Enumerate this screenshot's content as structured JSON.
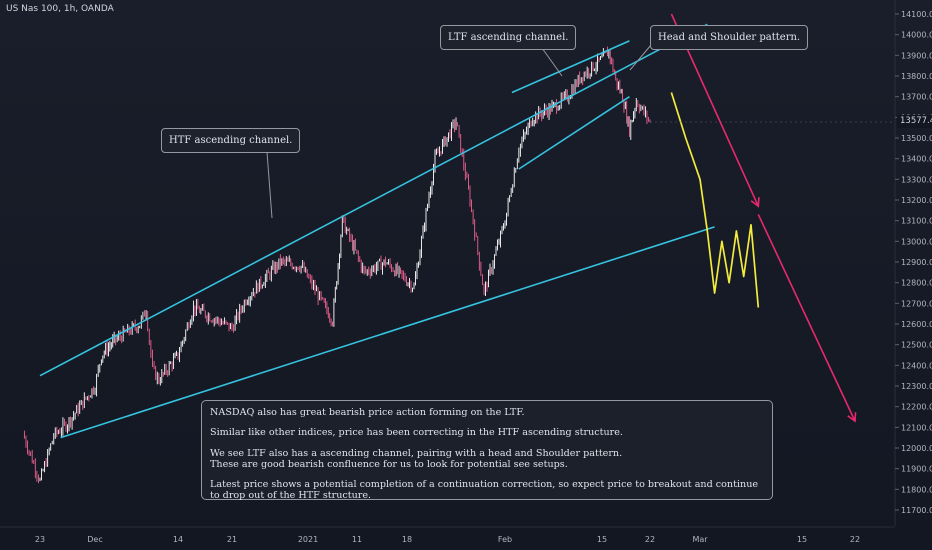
{
  "header": {
    "title": "US Nas 100, 1h, OANDA"
  },
  "colors": {
    "background": "#171b26",
    "trendline": "#35c3e0",
    "projection": "#f2ea3c",
    "arrow": "#e8296e",
    "candle_up": "#ffffff",
    "candle_down": "#f06292",
    "axis_text": "#b2b5be"
  },
  "callouts": {
    "htf": "HTF ascending channel.",
    "ltf": "LTF ascending channel.",
    "hs": "Head and Shoulder pattern."
  },
  "notes": {
    "line1": "NASDAQ also has great bearish price action forming on the LTF.",
    "line2": "Similar like other indices, price has been correcting in the HTF ascending structure.",
    "line3a": "We see LTF also has a ascending channel, pairing with a head and Shoulder pattern.",
    "line3b": "These are good bearish confluence for us to look for potential see setups.",
    "line4": "Latest price shows a potential completion of a continuation correction, so expect price to breakout and continue to drop out of the HTF structure."
  },
  "chart_data": {
    "type": "line",
    "symbol": "US Nas 100",
    "timeframe": "1h",
    "source": "OANDA",
    "last_price": "13577.4",
    "y_ticks": [
      14100,
      14000,
      13900,
      13800,
      13700,
      13600,
      13500,
      13400,
      13300,
      13200,
      13100,
      13000,
      12900,
      12800,
      12700,
      12600,
      12500,
      12400,
      12300,
      12200,
      12100,
      12000,
      11900,
      11800,
      11700
    ],
    "x_ticks": [
      "23",
      "Dec",
      "14",
      "21",
      "2021",
      "11",
      "18",
      "Feb",
      "15",
      "22",
      "Mar",
      "15",
      "22"
    ],
    "x_labels_ordered": [
      "23",
      "Dec",
      "14",
      "21",
      "2021",
      "11",
      "18",
      "Feb",
      "15",
      "22",
      "Mar",
      "15",
      "22"
    ],
    "price_path": [
      {
        "x": "2020-11-20",
        "y": 12070
      },
      {
        "x": "2020-11-23",
        "y": 11840
      },
      {
        "x": "2020-11-25",
        "y": 12060
      },
      {
        "x": "2020-11-27",
        "y": 12120
      },
      {
        "x": "2020-12-01",
        "y": 12300
      },
      {
        "x": "2020-12-02",
        "y": 12450
      },
      {
        "x": "2020-12-04",
        "y": 12520
      },
      {
        "x": "2020-12-08",
        "y": 12600
      },
      {
        "x": "2020-12-09",
        "y": 12670
      },
      {
        "x": "2020-12-10",
        "y": 12380
      },
      {
        "x": "2020-12-11",
        "y": 12330
      },
      {
        "x": "2020-12-14",
        "y": 12450
      },
      {
        "x": "2020-12-16",
        "y": 12680
      },
      {
        "x": "2020-12-21",
        "y": 12580
      },
      {
        "x": "2020-12-23",
        "y": 12720
      },
      {
        "x": "2020-12-28",
        "y": 12900
      },
      {
        "x": "2020-12-31",
        "y": 12880
      },
      {
        "x": "2021-01-04",
        "y": 12700
      },
      {
        "x": "2021-01-06",
        "y": 12620
      },
      {
        "x": "2021-01-08",
        "y": 13100
      },
      {
        "x": "2021-01-12",
        "y": 12850
      },
      {
        "x": "2021-01-15",
        "y": 12900
      },
      {
        "x": "2021-01-19",
        "y": 12780
      },
      {
        "x": "2021-01-22",
        "y": 13400
      },
      {
        "x": "2021-01-25",
        "y": 13580
      },
      {
        "x": "2021-01-27",
        "y": 13200
      },
      {
        "x": "2021-01-29",
        "y": 12750
      },
      {
        "x": "2021-02-01",
        "y": 13100
      },
      {
        "x": "2021-02-03",
        "y": 13450
      },
      {
        "x": "2021-02-05",
        "y": 13600
      },
      {
        "x": "2021-02-08",
        "y": 13650
      },
      {
        "x": "2021-02-10",
        "y": 13700
      },
      {
        "x": "2021-02-12",
        "y": 13800
      },
      {
        "x": "2021-02-15",
        "y": 13880
      },
      {
        "x": "2021-02-16",
        "y": 13920
      },
      {
        "x": "2021-02-17",
        "y": 13780
      },
      {
        "x": "2021-02-18",
        "y": 13700
      },
      {
        "x": "2021-02-19",
        "y": 13540
      },
      {
        "x": "2021-02-20",
        "y": 13680
      },
      {
        "x": "2021-02-22",
        "y": 13577
      }
    ],
    "projection_path": [
      {
        "x": "2021-02-25",
        "y": 13720
      },
      {
        "x": "2021-02-27",
        "y": 13500
      },
      {
        "x": "2021-03-01",
        "y": 13300
      },
      {
        "x": "2021-03-02",
        "y": 13050
      },
      {
        "x": "2021-03-03",
        "y": 12750
      },
      {
        "x": "2021-03-04",
        "y": 13000
      },
      {
        "x": "2021-03-05",
        "y": 12800
      },
      {
        "x": "2021-03-06",
        "y": 13050
      },
      {
        "x": "2021-03-07",
        "y": 12830
      },
      {
        "x": "2021-03-08",
        "y": 13080
      },
      {
        "x": "2021-03-09",
        "y": 12680
      }
    ],
    "trendlines": [
      {
        "name": "HTF upper",
        "from": {
          "x": "2020-11-23",
          "y": 12350
        },
        "to": {
          "x": "2021-03-02",
          "y": 14050
        }
      },
      {
        "name": "HTF lower",
        "from": {
          "x": "2020-11-26",
          "y": 12050
        },
        "to": {
          "x": "2021-03-03",
          "y": 13070
        }
      },
      {
        "name": "LTF upper",
        "from": {
          "x": "2021-02-02",
          "y": 13720
        },
        "to": {
          "x": "2021-02-19",
          "y": 13970
        }
      },
      {
        "name": "LTF lower",
        "from": {
          "x": "2021-02-03",
          "y": 13350
        },
        "to": {
          "x": "2021-02-19",
          "y": 13700
        }
      }
    ],
    "arrows": [
      {
        "from": {
          "x": "2021-02-25",
          "y": 14100
        },
        "to": {
          "x": "2021-03-09",
          "y": 13170
        }
      },
      {
        "from": {
          "x": "2021-03-09",
          "y": 13130
        },
        "to": {
          "x": "2021-03-22",
          "y": 12130
        }
      }
    ],
    "title": "",
    "xlabel": "",
    "ylabel": "",
    "grid": false
  }
}
